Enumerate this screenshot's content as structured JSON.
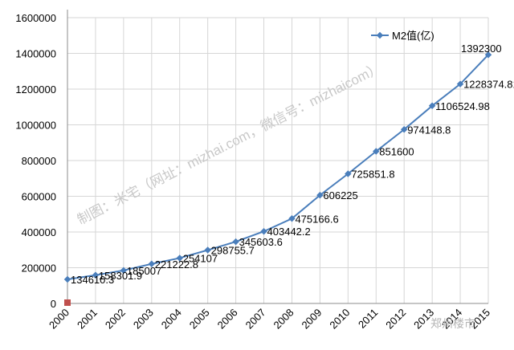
{
  "chart_data": {
    "type": "line",
    "title": "",
    "xlabel": "",
    "ylabel": "",
    "categories": [
      "2000",
      "2001",
      "2002",
      "2003",
      "2004",
      "2005",
      "2006",
      "2007",
      "2008",
      "2009",
      "2010",
      "2011",
      "2012",
      "2013",
      "2014",
      "2015"
    ],
    "ylim": [
      0,
      1600000
    ],
    "y_ticks": [
      "0",
      "200000",
      "400000",
      "600000",
      "800000",
      "1000000",
      "1200000",
      "1400000",
      "1600000"
    ],
    "grid": "vertical and horizontal gridlines on",
    "legend_position": "top-right",
    "series": [
      {
        "name": "M2值(亿)",
        "color": "#4a7ebb",
        "values": [
          134610.3,
          158301.9,
          185007,
          221222.8,
          254107,
          298755.7,
          345603.6,
          403442.2,
          475166.6,
          606225,
          725851.8,
          851600,
          974148.8,
          1106524.98,
          1228374.81,
          1392300
        ],
        "data_labels": [
          "134610.3",
          "158301.9",
          "185007",
          "221222.8",
          "254107",
          "298755.7",
          "345603.6",
          "403442.2",
          "475166.6",
          "606225",
          "725851.8",
          "851600",
          "974148.8",
          "1106524.98",
          "1228374.81",
          "1392300"
        ]
      }
    ]
  },
  "watermark": "制图：米宅（网址：mizhai.com，微信号：mizhaicom）",
  "corner_mark": "郑州楼市"
}
